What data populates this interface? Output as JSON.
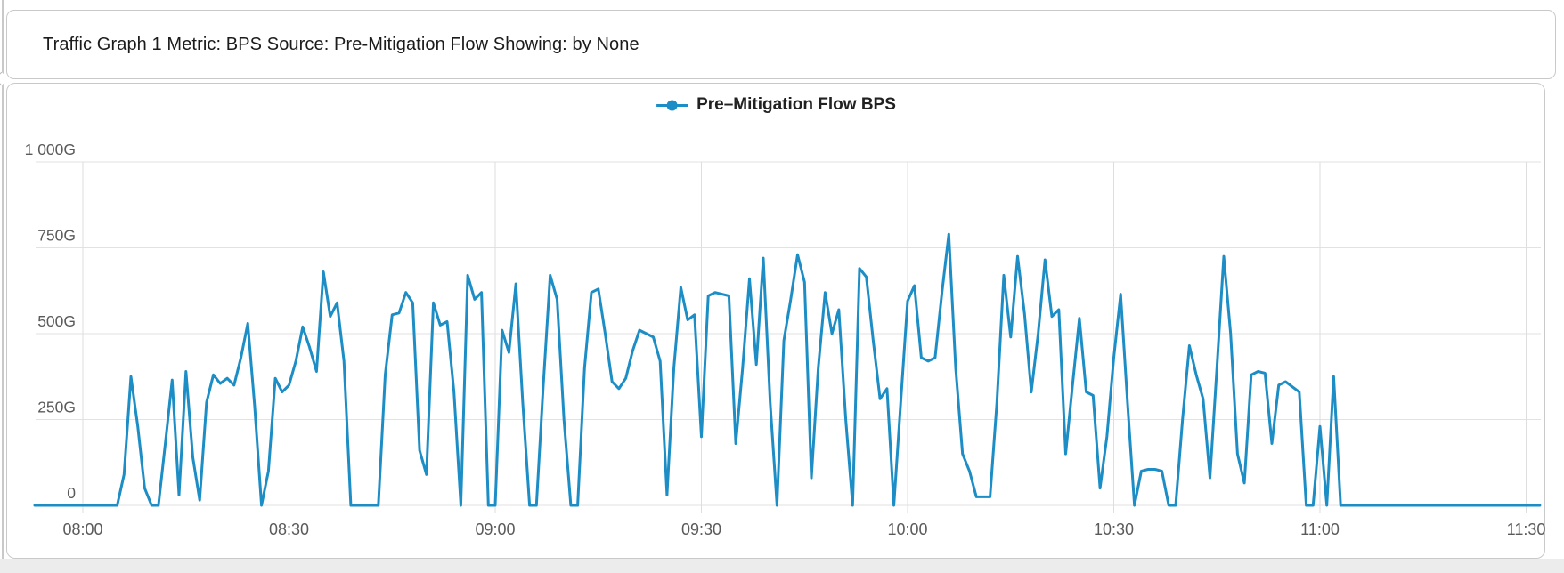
{
  "window": {
    "header_title": "Traffic Graph 1 Metric: BPS Source: Pre-Mitigation Flow Showing: by None"
  },
  "chart_data": {
    "type": "line",
    "title": "",
    "legend_position": "top-center",
    "grid": true,
    "legend": [
      {
        "label": "Pre–Mitigation Flow BPS",
        "color": "#1d8dc5"
      }
    ],
    "x_ticks": [
      "08:00",
      "08:30",
      "09:00",
      "09:30",
      "10:00",
      "10:30",
      "11:00",
      "11:30"
    ],
    "y_tick_labels": [
      "1 000G",
      "750G",
      "500G",
      "250G",
      "0"
    ],
    "y_tick_values": [
      1000,
      750,
      500,
      250,
      0
    ],
    "ylim": [
      0,
      1000
    ],
    "y_unit": "Gbps (G)",
    "series": [
      {
        "name": "Pre-Mitigation Flow BPS",
        "color": "#1d8dc5",
        "start_time": "07:53",
        "end_time": "11:32",
        "step_minutes": 1,
        "values_gbps": [
          0,
          0,
          0,
          0,
          0,
          0,
          0,
          0,
          0,
          0,
          0,
          0,
          0,
          90,
          375,
          230,
          50,
          0,
          0,
          180,
          365,
          30,
          390,
          140,
          15,
          300,
          380,
          355,
          370,
          350,
          430,
          530,
          290,
          0,
          100,
          370,
          330,
          350,
          420,
          520,
          460,
          390,
          680,
          550,
          590,
          420,
          0,
          0,
          0,
          0,
          0,
          380,
          555,
          560,
          620,
          590,
          160,
          90,
          590,
          525,
          535,
          330,
          0,
          670,
          600,
          620,
          0,
          0,
          510,
          445,
          645,
          300,
          0,
          0,
          350,
          670,
          600,
          250,
          0,
          0,
          400,
          620,
          630,
          500,
          360,
          340,
          370,
          450,
          510,
          500,
          490,
          420,
          30,
          400,
          635,
          540,
          555,
          200,
          610,
          620,
          615,
          610,
          180,
          400,
          660,
          410,
          720,
          300,
          0,
          480,
          600,
          730,
          650,
          80,
          400,
          620,
          500,
          570,
          250,
          0,
          690,
          665,
          480,
          310,
          340,
          0,
          300,
          595,
          640,
          430,
          420,
          430,
          620,
          790,
          400,
          150,
          100,
          25,
          25,
          25,
          300,
          670,
          490,
          725,
          560,
          330,
          500,
          715,
          550,
          570,
          150,
          350,
          545,
          330,
          320,
          50,
          200,
          430,
          615,
          300,
          0,
          100,
          105,
          105,
          100,
          0,
          0,
          250,
          465,
          380,
          310,
          80,
          400,
          725,
          500,
          150,
          65,
          380,
          390,
          385,
          180,
          350,
          360,
          345,
          330,
          0,
          0,
          230,
          0,
          375,
          0,
          0,
          0,
          0,
          0,
          0,
          0,
          0,
          0,
          0,
          0,
          0,
          0,
          0,
          0,
          0,
          0,
          0,
          0,
          0,
          0,
          0,
          0,
          0,
          0,
          0,
          0,
          0,
          0,
          0
        ]
      }
    ]
  }
}
